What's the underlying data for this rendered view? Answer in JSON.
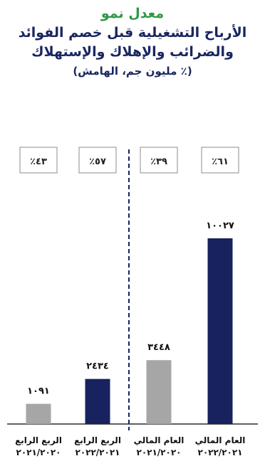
{
  "title": {
    "line1": "معدل نمو",
    "line2": "الأرباح التشغيلية قبل خصم الفوائد",
    "line3": "والضرائب والإهلاك والإستهلاك",
    "unit": "(مليون جم، الهامش ٪)"
  },
  "colors": {
    "navy": "#17225e",
    "gray": "#a6a6a6",
    "green": "#2e9a46",
    "frame": "#8c8c8c"
  },
  "chart_data": {
    "type": "bar",
    "categories": [
      {
        "line1": "الربع الرابع",
        "line2": "٢٠٢١/٢٠٢٠"
      },
      {
        "line1": "الربع الرابع",
        "line2": "٢٠٢٢/٢٠٢١"
      },
      {
        "line1": "العام المالي",
        "line2": "٢٠٢١/٢٠٢٠"
      },
      {
        "line1": "العام المالي",
        "line2": "٢٠٢٢/٢٠٢١"
      }
    ],
    "values": [
      1091,
      2434,
      3448,
      10027
    ],
    "value_labels": [
      "١٠٩١",
      "٢٤٣٤",
      "٣٤٤٨",
      "١٠٠٢٧"
    ],
    "margins": [
      "٪٤٣",
      "٪٥٧",
      "٪٣٩",
      "٪٦١"
    ],
    "bar_colors": [
      "gray",
      "navy",
      "gray",
      "navy"
    ],
    "ylim": [
      0,
      10027
    ],
    "grid": false,
    "divider_after_category": 2
  }
}
